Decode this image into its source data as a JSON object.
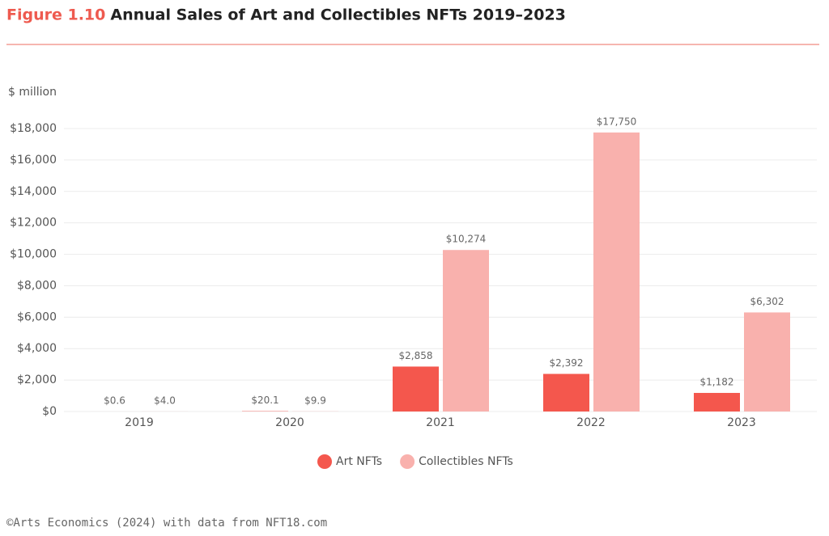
{
  "chart_data": {
    "type": "bar",
    "figure_number": "Figure 1.10",
    "title": "Annual Sales of Art and Collectibles NFTs 2019–2023",
    "y_label": "$ million",
    "source": "©Arts Economics (2024) with data from NFT18.com",
    "categories": [
      "2019",
      "2020",
      "2021",
      "2022",
      "2023"
    ],
    "series": [
      {
        "name": "Art NFTs",
        "color": "#f4574d",
        "values": [
          0.6,
          20.1,
          2858,
          2392,
          1182
        ],
        "value_labels": [
          "$0.6",
          "$20.1",
          "$2,858",
          "$2,392",
          "$1,182"
        ]
      },
      {
        "name": "Collectibles NFTs",
        "color": "#f9b1ad",
        "values": [
          4.0,
          9.9,
          10274,
          17750,
          6302
        ],
        "value_labels": [
          "$4.0",
          "$9.9",
          "$10,274",
          "$17,750",
          "$6,302"
        ]
      }
    ],
    "ylim": [
      0,
      18000
    ],
    "yticks": [
      {
        "value": 0,
        "label": "$0"
      },
      {
        "value": 2000,
        "label": "$2,000"
      },
      {
        "value": 4000,
        "label": "$4,000"
      },
      {
        "value": 6000,
        "label": "$6,000"
      },
      {
        "value": 8000,
        "label": "$8,000"
      },
      {
        "value": 10000,
        "label": "$10,000"
      },
      {
        "value": 12000,
        "label": "$12,000"
      },
      {
        "value": 14000,
        "label": "$14,000"
      },
      {
        "value": 16000,
        "label": "$16,000"
      },
      {
        "value": 18000,
        "label": "$18,000"
      }
    ],
    "grid": true
  }
}
